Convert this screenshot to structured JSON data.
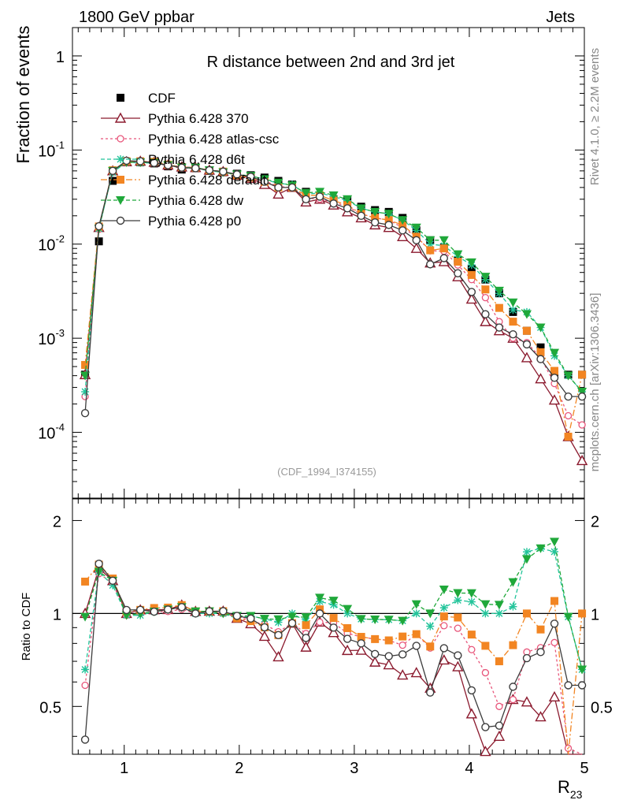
{
  "header": {
    "left": "1800 GeV ppbar",
    "right": "Jets"
  },
  "side": {
    "rivet": "Rivet 4.1.0, ≥ 2.2M events",
    "mcplots": "mcplots.cern.ch [arXiv:1306.3436]"
  },
  "chart_data": {
    "type": "line",
    "title": "R distance between 2nd and 3rd jet",
    "ylabel": "Fraction of events",
    "xlabel_main": "R",
    "xlabel_sub": "23",
    "ratio_ylabel": "Ratio to CDF",
    "watermark": "(CDF_1994_I374155)",
    "xlim": [
      0.55,
      5.0
    ],
    "ylim": [
      2e-05,
      2.0
    ],
    "ratio_ylim": [
      0.35,
      2.35
    ],
    "x_ticks": [
      1,
      2,
      3,
      4,
      5
    ],
    "y_ticks": [
      {
        "label": "1",
        "exp": ""
      },
      {
        "label": "10",
        "exp": "-1"
      },
      {
        "label": "10",
        "exp": "-2"
      },
      {
        "label": "10",
        "exp": "-3"
      },
      {
        "label": "10",
        "exp": "-4"
      }
    ],
    "ratio_ticks": [
      "0.5",
      "1",
      "2"
    ],
    "x": [
      0.66,
      0.78,
      0.9,
      1.02,
      1.14,
      1.26,
      1.38,
      1.5,
      1.62,
      1.74,
      1.86,
      1.98,
      2.1,
      2.22,
      2.34,
      2.46,
      2.58,
      2.7,
      2.82,
      2.94,
      3.06,
      3.18,
      3.3,
      3.42,
      3.54,
      3.66,
      3.78,
      3.9,
      4.02,
      4.14,
      4.26,
      4.38,
      4.5,
      4.62,
      4.74,
      4.86,
      4.98
    ],
    "series": [
      {
        "name": "CDF",
        "color": "#000000",
        "marker": "square",
        "values": [
          0.00041,
          0.0107,
          0.047,
          0.075,
          0.074,
          0.072,
          0.067,
          0.062,
          0.064,
          0.06,
          0.058,
          0.056,
          0.054,
          0.051,
          0.047,
          0.043,
          0.036,
          0.032,
          0.03,
          0.029,
          0.025,
          0.023,
          0.022,
          0.019,
          0.014,
          0.011,
          0.0092,
          0.0067,
          0.0055,
          0.0042,
          0.003,
          0.0019,
          0.0012,
          0.0008,
          0.00041,
          0.00041,
          0.00041
        ]
      },
      {
        "name": "Pythia 6.428 370",
        "color": "#8b1a2e",
        "marker": "triangle",
        "values": [
          0.00041,
          0.015,
          0.06,
          0.075,
          0.076,
          0.074,
          0.069,
          0.066,
          0.065,
          0.061,
          0.059,
          0.054,
          0.05,
          0.043,
          0.034,
          0.04,
          0.028,
          0.03,
          0.026,
          0.022,
          0.019,
          0.016,
          0.015,
          0.012,
          0.009,
          0.0063,
          0.0065,
          0.0045,
          0.0026,
          0.0015,
          0.0012,
          0.001,
          0.00062,
          0.00037,
          0.00022,
          9e-05,
          5e-05
        ]
      },
      {
        "name": "Pythia 6.428 atlas-csc",
        "color": "#e8557a",
        "marker": "circle",
        "values": [
          0.00024,
          0.0144,
          0.059,
          0.074,
          0.074,
          0.073,
          0.068,
          0.064,
          0.064,
          0.061,
          0.058,
          0.055,
          0.051,
          0.047,
          0.041,
          0.04,
          0.031,
          0.03,
          0.028,
          0.025,
          0.021,
          0.019,
          0.018,
          0.015,
          0.012,
          0.0085,
          0.0084,
          0.006,
          0.0042,
          0.0027,
          0.0015,
          0.001,
          0.0009,
          0.00062,
          0.00033,
          0.00015,
          0.00012
        ]
      },
      {
        "name": "Pythia 6.428 d6t",
        "color": "#22c49a",
        "marker": "star",
        "values": [
          0.00027,
          0.0146,
          0.058,
          0.074,
          0.073,
          0.073,
          0.069,
          0.065,
          0.064,
          0.06,
          0.058,
          0.054,
          0.053,
          0.049,
          0.044,
          0.043,
          0.034,
          0.035,
          0.032,
          0.029,
          0.024,
          0.022,
          0.021,
          0.018,
          0.014,
          0.01,
          0.0096,
          0.0074,
          0.006,
          0.0042,
          0.003,
          0.002,
          0.0019,
          0.0013,
          0.00065,
          0.0004,
          0.00027
        ]
      },
      {
        "name": "Pythia 6.428 default",
        "color": "#f28522",
        "marker": "square",
        "values": [
          0.00052,
          0.0154,
          0.061,
          0.076,
          0.076,
          0.075,
          0.07,
          0.066,
          0.065,
          0.061,
          0.059,
          0.054,
          0.051,
          0.046,
          0.04,
          0.04,
          0.033,
          0.033,
          0.029,
          0.026,
          0.021,
          0.019,
          0.018,
          0.016,
          0.012,
          0.0086,
          0.009,
          0.0065,
          0.0047,
          0.0033,
          0.0021,
          0.0015,
          0.0012,
          0.00071,
          0.00045,
          9e-05,
          0.00041
        ]
      },
      {
        "name": "Pythia 6.428 dw",
        "color": "#1fa83a",
        "marker": "triangle-down",
        "values": [
          0.0004,
          0.0146,
          0.06,
          0.074,
          0.074,
          0.073,
          0.069,
          0.065,
          0.065,
          0.061,
          0.058,
          0.055,
          0.053,
          0.049,
          0.045,
          0.042,
          0.035,
          0.036,
          0.033,
          0.03,
          0.024,
          0.022,
          0.021,
          0.018,
          0.015,
          0.011,
          0.011,
          0.0078,
          0.0064,
          0.0045,
          0.0032,
          0.0024,
          0.0018,
          0.0013,
          0.0007,
          0.0004,
          0.00027
        ]
      },
      {
        "name": "Pythia 6.428 p0",
        "color": "#3c3c3c",
        "marker": "open-circle",
        "values": [
          0.00016,
          0.0155,
          0.06,
          0.077,
          0.076,
          0.073,
          0.069,
          0.065,
          0.064,
          0.061,
          0.059,
          0.055,
          0.052,
          0.046,
          0.04,
          0.04,
          0.03,
          0.032,
          0.027,
          0.024,
          0.02,
          0.017,
          0.016,
          0.014,
          0.011,
          0.0061,
          0.0071,
          0.0049,
          0.0031,
          0.0018,
          0.0013,
          0.0011,
          0.00086,
          0.0006,
          0.00038,
          0.00024,
          0.00024
        ]
      }
    ]
  }
}
